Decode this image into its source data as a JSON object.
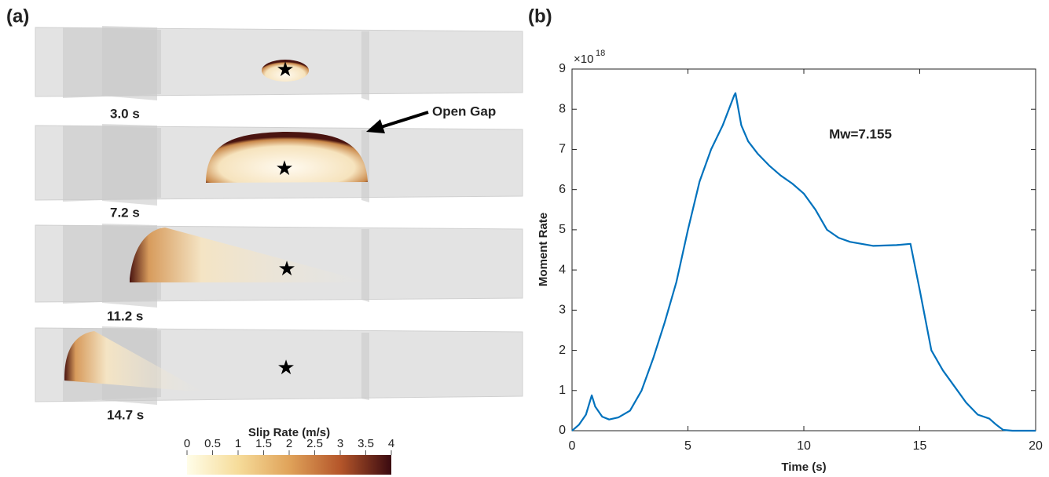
{
  "panel_a": {
    "label": "(a)",
    "times": [
      "3.0 s",
      "7.2 s",
      "11.2 s",
      "14.7 s"
    ],
    "annotation": "Open Gap",
    "colorbar": {
      "label": "Slip Rate (m/s)",
      "lim": [
        0,
        4
      ],
      "ticks": [
        0,
        0.5,
        1,
        1.5,
        2,
        2.5,
        3,
        3.5,
        4
      ]
    }
  },
  "chart_data": {
    "type": "line",
    "panel_label": "(b)",
    "xlabel": "Time (s)",
    "ylabel": "Moment Rate",
    "y_multiplier": {
      "base": "×10",
      "exponent": "18"
    },
    "annotation": "Mw=7.155",
    "color": "#0072bd",
    "x": [
      0,
      0.3,
      0.6,
      0.85,
      1.0,
      1.3,
      1.6,
      2.0,
      2.5,
      3.0,
      3.5,
      4.0,
      4.5,
      5.0,
      5.5,
      6.0,
      6.5,
      7.0,
      7.05,
      7.3,
      7.6,
      8.0,
      8.5,
      9.0,
      9.5,
      10.0,
      10.5,
      11.0,
      11.5,
      12.0,
      13.0,
      14.0,
      14.6,
      15.0,
      15.5,
      16.0,
      16.5,
      17.0,
      17.5,
      18.0,
      18.3,
      18.6,
      19.0,
      20.0
    ],
    "values": [
      0,
      0.15,
      0.4,
      0.88,
      0.6,
      0.35,
      0.28,
      0.33,
      0.5,
      1.0,
      1.8,
      2.7,
      3.7,
      5.0,
      6.2,
      7.0,
      7.6,
      8.35,
      8.4,
      7.6,
      7.2,
      6.9,
      6.6,
      6.35,
      6.15,
      5.9,
      5.5,
      5.0,
      4.8,
      4.7,
      4.6,
      4.62,
      4.65,
      3.5,
      2.0,
      1.5,
      1.1,
      0.7,
      0.4,
      0.3,
      0.15,
      0.02,
      0,
      0
    ],
    "xlim": [
      0,
      20
    ],
    "xticks": [
      0,
      5,
      10,
      15,
      20
    ],
    "ylim": [
      0,
      9
    ],
    "yticks": [
      0,
      1,
      2,
      3,
      4,
      5,
      6,
      7,
      8,
      9
    ]
  }
}
